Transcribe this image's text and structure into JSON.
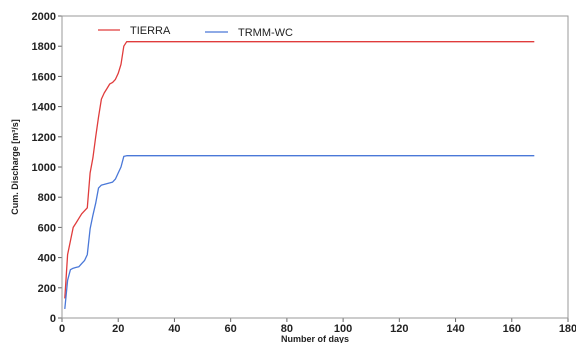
{
  "chart_data": {
    "type": "line",
    "xlabel": "Number of days",
    "ylabel": "Cum. Discharge [m³/s]",
    "xlim": [
      0,
      180
    ],
    "ylim": [
      0,
      2000
    ],
    "xticks": [
      0,
      20,
      40,
      60,
      80,
      100,
      120,
      140,
      160,
      180
    ],
    "yticks": [
      0,
      200,
      400,
      600,
      800,
      1000,
      1200,
      1400,
      1600,
      1800,
      2000
    ],
    "grid": false,
    "legend_position": "top-left",
    "series": [
      {
        "name": "TIERRA",
        "color": "#e03c3c",
        "x": [
          1,
          2,
          3,
          4,
          5,
          6,
          7,
          8,
          9,
          10,
          11,
          12,
          13,
          14,
          15,
          16,
          17,
          18,
          19,
          20,
          21,
          22,
          23,
          24,
          168
        ],
        "y": [
          130,
          420,
          510,
          600,
          630,
          660,
          690,
          710,
          730,
          960,
          1060,
          1200,
          1330,
          1450,
          1490,
          1520,
          1550,
          1560,
          1580,
          1620,
          1680,
          1800,
          1830,
          1830,
          1830
        ]
      },
      {
        "name": "TRMM-WC",
        "color": "#4a78d8",
        "x": [
          1,
          2,
          3,
          4,
          5,
          6,
          7,
          8,
          9,
          10,
          11,
          12,
          13,
          14,
          15,
          16,
          17,
          18,
          19,
          20,
          21,
          22,
          23,
          24,
          168
        ],
        "y": [
          60,
          250,
          320,
          330,
          335,
          340,
          360,
          380,
          420,
          590,
          680,
          760,
          860,
          880,
          885,
          890,
          895,
          900,
          920,
          960,
          1000,
          1070,
          1075,
          1075,
          1075
        ]
      }
    ]
  }
}
